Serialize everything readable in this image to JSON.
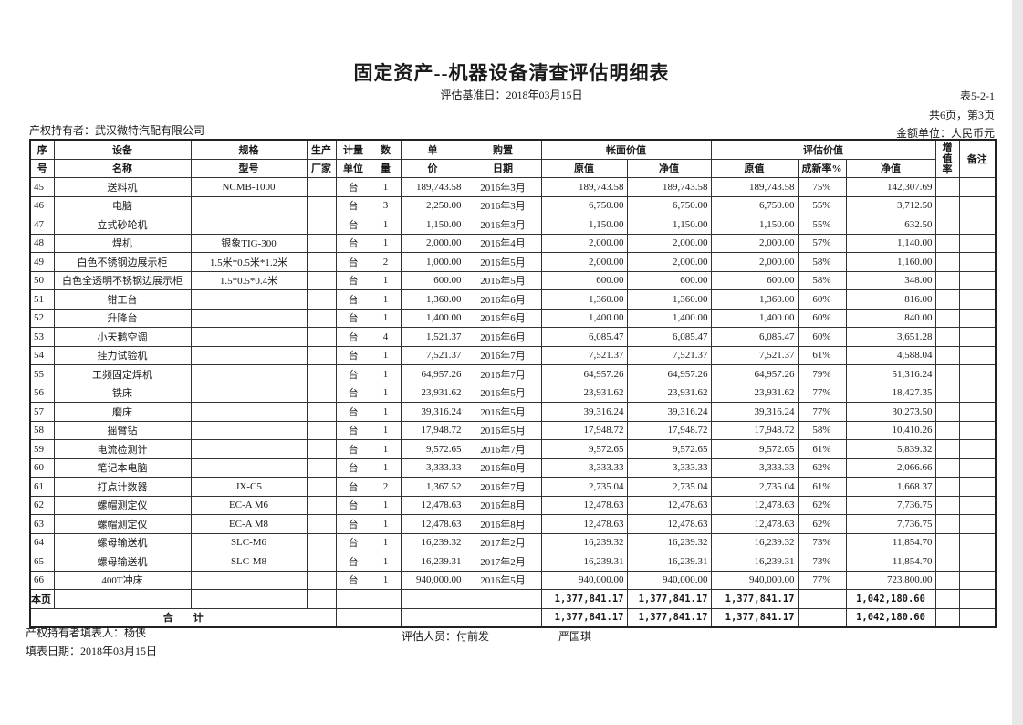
{
  "header": {
    "title": "固定资产--机器设备清查评估明细表",
    "subtitle": "评估基准日：2018年03月15日",
    "table_no": "表5-2-1",
    "page_info": "共6页，第3页",
    "owner": "产权持有者：武汉微特汽配有限公司",
    "unit": "金额单位：人民币元"
  },
  "columns": {
    "seq": [
      "序",
      "号"
    ],
    "name": [
      "设备",
      "名称"
    ],
    "model": [
      "规格",
      "型号"
    ],
    "maker": [
      "生产",
      "厂家"
    ],
    "unit": [
      "计量",
      "单位"
    ],
    "qty": [
      "数",
      "量"
    ],
    "price": [
      "单",
      "价"
    ],
    "date": [
      "购置",
      "日期"
    ],
    "book_value": "帐面价值",
    "book_orig": "原值",
    "book_net": "净值",
    "eval_value": "评估价值",
    "eval_orig": "原值",
    "eval_rate": "成新率%",
    "eval_net": "净值",
    "increase_rate": "增值率",
    "remark": "备注"
  },
  "rows": [
    [
      "45",
      "送料机",
      "NCMB-1000",
      "",
      "台",
      "1",
      "189,743.58",
      "2016年3月",
      "189,743.58",
      "189,743.58",
      "189,743.58",
      "75%",
      "142,307.69",
      "",
      ""
    ],
    [
      "46",
      "电脑",
      "",
      "",
      "台",
      "3",
      "2,250.00",
      "2016年3月",
      "6,750.00",
      "6,750.00",
      "6,750.00",
      "55%",
      "3,712.50",
      "",
      ""
    ],
    [
      "47",
      "立式砂轮机",
      "",
      "",
      "台",
      "1",
      "1,150.00",
      "2016年3月",
      "1,150.00",
      "1,150.00",
      "1,150.00",
      "55%",
      "632.50",
      "",
      ""
    ],
    [
      "48",
      "焊机",
      "银象TIG-300",
      "",
      "台",
      "1",
      "2,000.00",
      "2016年4月",
      "2,000.00",
      "2,000.00",
      "2,000.00",
      "57%",
      "1,140.00",
      "",
      ""
    ],
    [
      "49",
      "白色不锈钢边展示柜",
      "1.5米*0.5米*1.2米",
      "",
      "台",
      "2",
      "1,000.00",
      "2016年5月",
      "2,000.00",
      "2,000.00",
      "2,000.00",
      "58%",
      "1,160.00",
      "",
      ""
    ],
    [
      "50",
      "白色全透明不锈钢边展示柜",
      "1.5*0.5*0.4米",
      "",
      "台",
      "1",
      "600.00",
      "2016年5月",
      "600.00",
      "600.00",
      "600.00",
      "58%",
      "348.00",
      "",
      ""
    ],
    [
      "51",
      "钳工台",
      "",
      "",
      "台",
      "1",
      "1,360.00",
      "2016年6月",
      "1,360.00",
      "1,360.00",
      "1,360.00",
      "60%",
      "816.00",
      "",
      ""
    ],
    [
      "52",
      "升降台",
      "",
      "",
      "台",
      "1",
      "1,400.00",
      "2016年6月",
      "1,400.00",
      "1,400.00",
      "1,400.00",
      "60%",
      "840.00",
      "",
      ""
    ],
    [
      "53",
      "小天鹅空调",
      "",
      "",
      "台",
      "4",
      "1,521.37",
      "2016年6月",
      "6,085.47",
      "6,085.47",
      "6,085.47",
      "60%",
      "3,651.28",
      "",
      ""
    ],
    [
      "54",
      "挂力试验机",
      "",
      "",
      "台",
      "1",
      "7,521.37",
      "2016年7月",
      "7,521.37",
      "7,521.37",
      "7,521.37",
      "61%",
      "4,588.04",
      "",
      ""
    ],
    [
      "55",
      "工频固定焊机",
      "",
      "",
      "台",
      "1",
      "64,957.26",
      "2016年7月",
      "64,957.26",
      "64,957.26",
      "64,957.26",
      "79%",
      "51,316.24",
      "",
      ""
    ],
    [
      "56",
      "铁床",
      "",
      "",
      "台",
      "1",
      "23,931.62",
      "2016年5月",
      "23,931.62",
      "23,931.62",
      "23,931.62",
      "77%",
      "18,427.35",
      "",
      ""
    ],
    [
      "57",
      "磨床",
      "",
      "",
      "台",
      "1",
      "39,316.24",
      "2016年5月",
      "39,316.24",
      "39,316.24",
      "39,316.24",
      "77%",
      "30,273.50",
      "",
      ""
    ],
    [
      "58",
      "摇臂钻",
      "",
      "",
      "台",
      "1",
      "17,948.72",
      "2016年5月",
      "17,948.72",
      "17,948.72",
      "17,948.72",
      "58%",
      "10,410.26",
      "",
      ""
    ],
    [
      "59",
      "电流检测计",
      "",
      "",
      "台",
      "1",
      "9,572.65",
      "2016年7月",
      "9,572.65",
      "9,572.65",
      "9,572.65",
      "61%",
      "5,839.32",
      "",
      ""
    ],
    [
      "60",
      "笔记本电脑",
      "",
      "",
      "台",
      "1",
      "3,333.33",
      "2016年8月",
      "3,333.33",
      "3,333.33",
      "3,333.33",
      "62%",
      "2,066.66",
      "",
      ""
    ],
    [
      "61",
      "打点计数器",
      "JX-C5",
      "",
      "台",
      "2",
      "1,367.52",
      "2016年7月",
      "2,735.04",
      "2,735.04",
      "2,735.04",
      "61%",
      "1,668.37",
      "",
      ""
    ],
    [
      "62",
      "螺帽测定仪",
      "EC-A M6",
      "",
      "台",
      "1",
      "12,478.63",
      "2016年8月",
      "12,478.63",
      "12,478.63",
      "12,478.63",
      "62%",
      "7,736.75",
      "",
      ""
    ],
    [
      "63",
      "螺帽测定仪",
      "EC-A M8",
      "",
      "台",
      "1",
      "12,478.63",
      "2016年8月",
      "12,478.63",
      "12,478.63",
      "12,478.63",
      "62%",
      "7,736.75",
      "",
      ""
    ],
    [
      "64",
      "螺母输送机",
      "SLC-M6",
      "",
      "台",
      "1",
      "16,239.32",
      "2017年2月",
      "16,239.32",
      "16,239.32",
      "16,239.32",
      "73%",
      "11,854.70",
      "",
      ""
    ],
    [
      "65",
      "螺母输送机",
      "SLC-M8",
      "",
      "台",
      "1",
      "16,239.31",
      "2017年2月",
      "16,239.31",
      "16,239.31",
      "16,239.31",
      "73%",
      "11,854.70",
      "",
      ""
    ],
    [
      "66",
      "400T冲床",
      "",
      "",
      "台",
      "1",
      "940,000.00",
      "2016年5月",
      "940,000.00",
      "940,000.00",
      "940,000.00",
      "77%",
      "723,800.00",
      "",
      ""
    ]
  ],
  "page_total": {
    "label": "本页",
    "book_orig": "1,377,841.17",
    "book_net": "1,377,841.17",
    "eval_orig": "1,377,841.17",
    "eval_net": "1,042,180.60"
  },
  "grand_total": {
    "label": "合　　计",
    "book_orig": "1,377,841.17",
    "book_net": "1,377,841.17",
    "eval_orig": "1,377,841.17",
    "eval_net": "1,042,180.60"
  },
  "footer": {
    "filler": "产权持有者填表人：杨侠",
    "evaluator": "评估人员：付前发",
    "evaluator2": "严国琪",
    "fill_date": "填表日期：2018年03月15日"
  }
}
